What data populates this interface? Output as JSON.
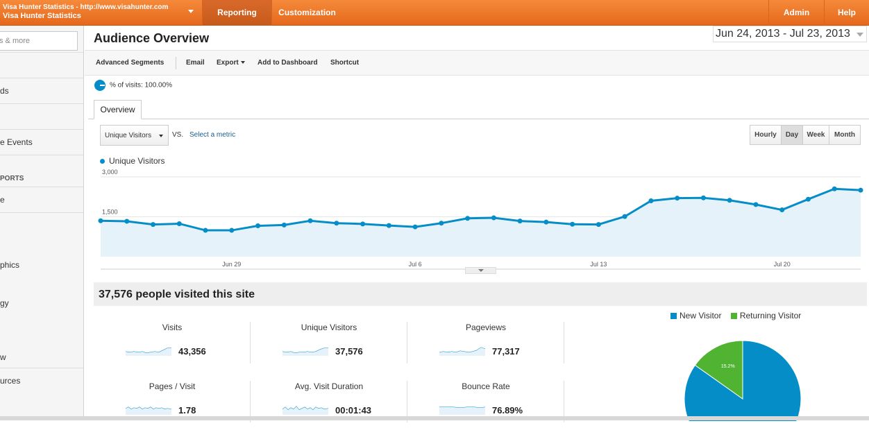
{
  "account": {
    "line1": "Visa Hunter Statistics - http://www.visahunter.com",
    "line2": "Visa Hunter Statistics"
  },
  "nav": {
    "reporting": "Reporting",
    "customization": "Customization",
    "admin": "Admin",
    "help": "Help"
  },
  "sidebar": {
    "search_text": "s & more",
    "items": [
      "ds",
      "",
      "e Events",
      "e",
      "",
      "phics",
      "gy",
      "w",
      "urces"
    ],
    "header": "PORTS"
  },
  "page": {
    "title": "Audience Overview",
    "date_from": "Jun 24, 2013",
    "date_sep": " - ",
    "date_to": "Jul 23, 2013"
  },
  "toolbar": {
    "advanced_segments": "Advanced Segments",
    "email": "Email",
    "export": "Export",
    "add_to_dashboard": "Add to Dashboard",
    "shortcut": "Shortcut"
  },
  "segment": {
    "label": "% of visits: 100.00%"
  },
  "tabs": {
    "overview": "Overview"
  },
  "controls": {
    "metric": "Unique Visitors",
    "vs": "VS.",
    "select_metric": "Select a metric",
    "granularity": [
      "Hourly",
      "Day",
      "Week",
      "Month"
    ],
    "active_granularity": "Day"
  },
  "chart_data": {
    "type": "area",
    "series": [
      {
        "name": "Unique Visitors",
        "values": [
          1350,
          1330,
          1210,
          1240,
          990,
          990,
          1160,
          1190,
          1350,
          1260,
          1230,
          1170,
          1120,
          1260,
          1440,
          1460,
          1340,
          1300,
          1220,
          1210,
          1510,
          2100,
          2200,
          2210,
          2120,
          1960,
          1760,
          2160,
          2550,
          2500
        ]
      }
    ],
    "x": [
      "Jun 24",
      "Jun 25",
      "Jun 26",
      "Jun 27",
      "Jun 28",
      "Jun 29",
      "Jun 30",
      "Jul 1",
      "Jul 2",
      "Jul 3",
      "Jul 4",
      "Jul 5",
      "Jul 6",
      "Jul 7",
      "Jul 8",
      "Jul 9",
      "Jul 10",
      "Jul 11",
      "Jul 12",
      "Jul 13",
      "Jul 14",
      "Jul 15",
      "Jul 16",
      "Jul 17",
      "Jul 18",
      "Jul 19",
      "Jul 20",
      "Jul 21",
      "Jul 22",
      "Jul 23"
    ],
    "x_ticks": [
      "Jun 29",
      "Jul 6",
      "Jul 13",
      "Jul 20"
    ],
    "y_ticks": [
      "1,500",
      "3,000"
    ],
    "y_tick_values": [
      1500,
      3000
    ],
    "ylim": [
      0,
      3000
    ],
    "grid": true,
    "color": "#058dc7",
    "fill": "#e5f2fa"
  },
  "summary": {
    "title": "37,576 people visited this site",
    "stats": [
      {
        "label": "Visits",
        "value": "43,356"
      },
      {
        "label": "Unique Visitors",
        "value": "37,576"
      },
      {
        "label": "Pageviews",
        "value": "77,317"
      },
      {
        "label": "Pages / Visit",
        "value": "1.78"
      },
      {
        "label": "Avg. Visit Duration",
        "value": "00:01:43"
      },
      {
        "label": "Bounce Rate",
        "value": "76.89%"
      }
    ]
  },
  "visitor_pie": {
    "legend": [
      {
        "name": "New Visitor",
        "color": "#058dc7",
        "share": 84.8
      },
      {
        "name": "Returning Visitor",
        "color": "#50b432",
        "share": 15.2
      }
    ],
    "slice_label": "15.2%"
  }
}
